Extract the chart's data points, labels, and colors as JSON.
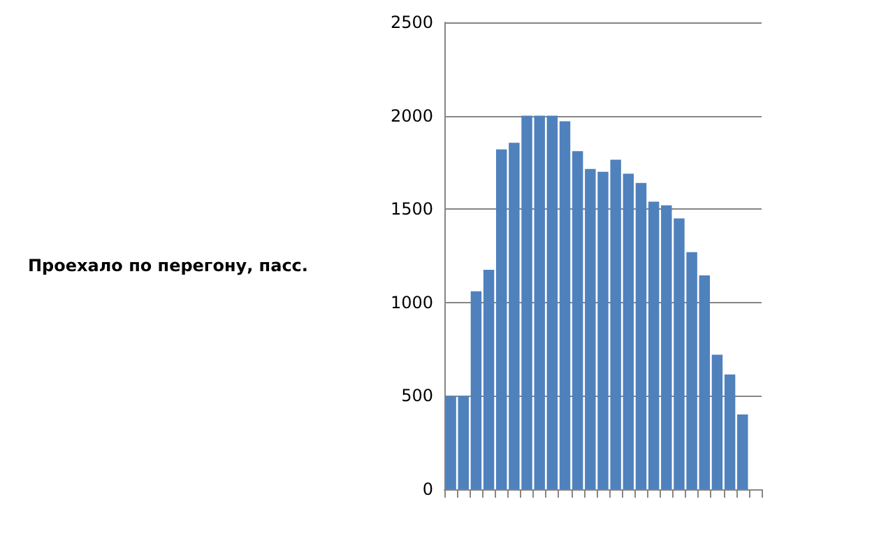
{
  "chart_data": {
    "type": "bar",
    "ylabel": "Проехало по перегону, пасс.",
    "categories": [
      null,
      null,
      null,
      null,
      null,
      null,
      null,
      null,
      null,
      null,
      null,
      null,
      null,
      null,
      null,
      null,
      null,
      null,
      null,
      null,
      null,
      null,
      null,
      null,
      null
    ],
    "values": [
      500,
      500,
      1060,
      1175,
      1820,
      1855,
      2000,
      2000,
      2000,
      1970,
      1810,
      1715,
      1700,
      1765,
      1690,
      1640,
      1540,
      1520,
      1450,
      1270,
      1145,
      720,
      615,
      400,
      null
    ],
    "color": "#4f81bd",
    "ylim": [
      0,
      2500
    ],
    "yticks": [
      0,
      500,
      1000,
      1500,
      2000,
      2500
    ],
    "grid": "y"
  }
}
